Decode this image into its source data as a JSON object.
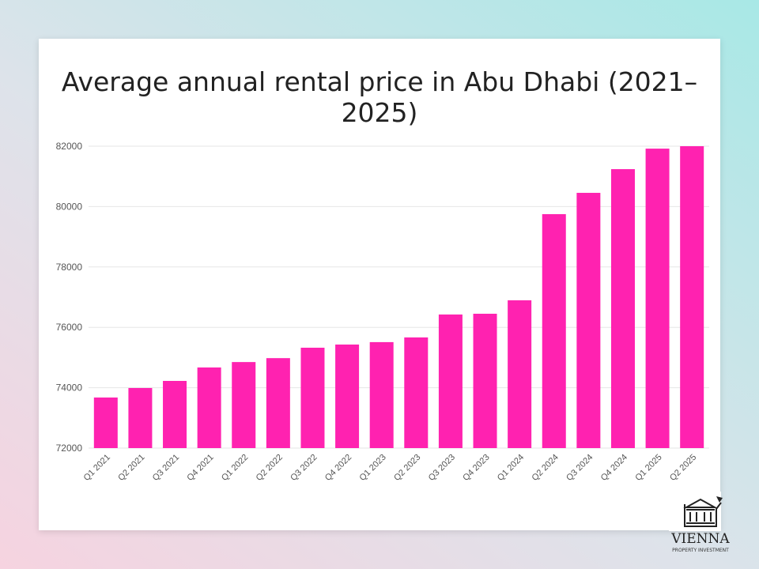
{
  "chart_data": {
    "type": "bar",
    "title": "Average annual rental price in Abu Dhabi (2021–2025)",
    "xlabel": "",
    "ylabel": "",
    "ylim": [
      72000,
      82000
    ],
    "yticks": [
      "72000",
      "74000",
      "76000",
      "78000",
      "80000",
      "82000"
    ],
    "grid": true,
    "categories": [
      "Q1 2021",
      "Q2 2021",
      "Q3 2021",
      "Q4 2021",
      "Q1 2022",
      "Q2 2022",
      "Q3 2022",
      "Q4 2022",
      "Q1 2023",
      "Q2 2023",
      "Q3 2023",
      "Q4 2023",
      "Q1 2024",
      "Q2 2024",
      "Q3 2024",
      "Q4 2024",
      "Q1 2025",
      "Q2 2025"
    ],
    "values": [
      73675,
      73990,
      74225,
      74670,
      74850,
      74980,
      75325,
      75430,
      75510,
      75665,
      76425,
      76450,
      76895,
      79750,
      80455,
      81240,
      81920,
      82000
    ],
    "bar_color": "#ff22b0"
  },
  "logo": {
    "name": "VIENNA",
    "subtitle": "PROPERTY INVESTMENT"
  }
}
